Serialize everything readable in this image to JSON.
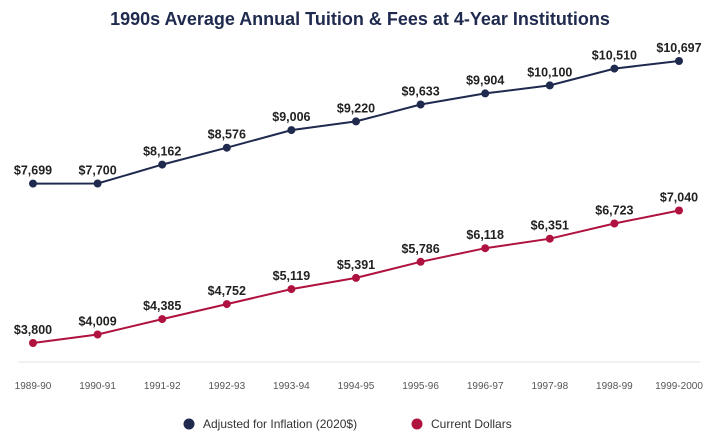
{
  "chart_data": {
    "type": "line",
    "title": "1990s Average Annual Tuition & Fees at 4-Year Institutions",
    "categories": [
      "1989-90",
      "1990-91",
      "1991-92",
      "1992-93",
      "1993-94",
      "1994-95",
      "1995-96",
      "1996-97",
      "1997-98",
      "1998-99",
      "1999-2000"
    ],
    "series": [
      {
        "name": "Adjusted for Inflation (2020$)",
        "color": "#1f2a4e",
        "values": [
          7699,
          7700,
          8162,
          8576,
          9006,
          9220,
          9633,
          9904,
          10100,
          10510,
          10697
        ],
        "labels": [
          "$7,699",
          "$7,700",
          "$8,162",
          "$8,576",
          "$9,006",
          "$9,220",
          "$9,633",
          "$9,904",
          "$10,100",
          "$10,510",
          "$10,697"
        ]
      },
      {
        "name": "Current Dollars",
        "color": "#b0123f",
        "values": [
          3800,
          4009,
          4385,
          4752,
          5119,
          5391,
          5786,
          6118,
          6351,
          6723,
          7040
        ],
        "labels": [
          "$3,800",
          "$4,009",
          "$4,385",
          "$4,752",
          "$5,119",
          "$5,391",
          "$5,786",
          "$6,118",
          "$6,351",
          "$6,723",
          "$7,040"
        ]
      }
    ],
    "ylim": [
      3800,
      10697
    ],
    "grid": false,
    "legend_position": "bottom"
  }
}
